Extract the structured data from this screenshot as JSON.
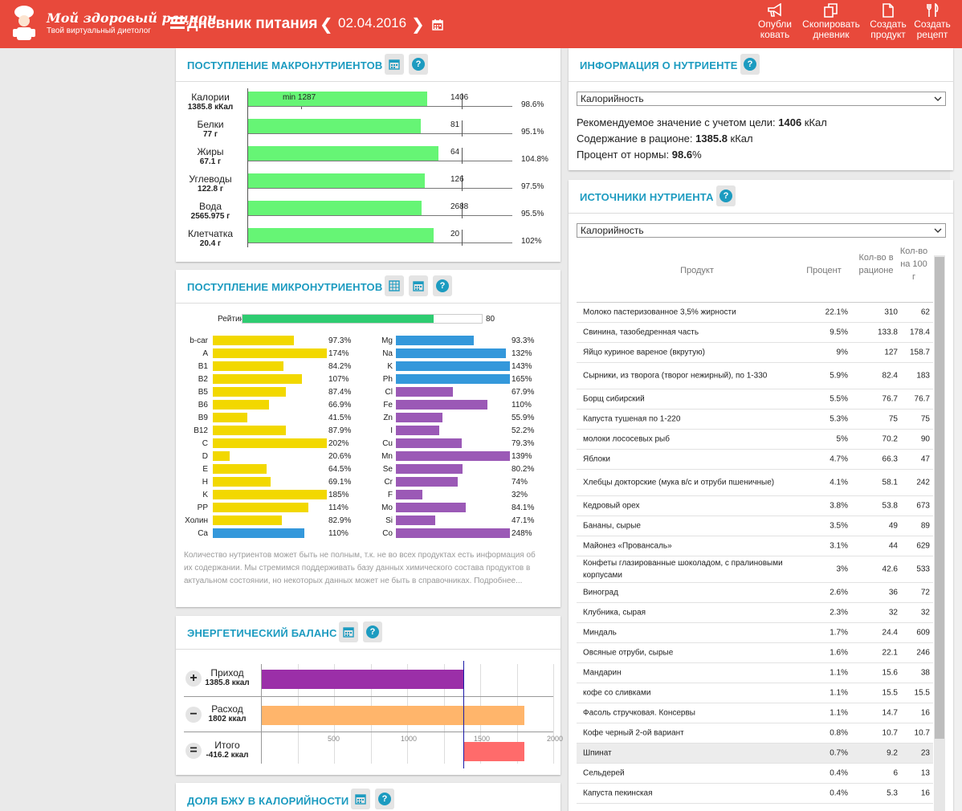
{
  "header": {
    "logo_title": "Мой здоровый рацион",
    "logo_subtitle": "Твой виртуальный диетолог",
    "page_title": "Дневник питания",
    "date": "02.04.2016",
    "actions": [
      {
        "line1": "Опубли",
        "line2": "ковать",
        "icon": "megaphone-icon"
      },
      {
        "line1": "Скопировать",
        "line2": "дневник",
        "icon": "copy-icon"
      },
      {
        "line1": "Создать",
        "line2": "продукт",
        "icon": "document-icon"
      },
      {
        "line1": "Создать",
        "line2": "рецепт",
        "icon": "utensils-icon"
      }
    ]
  },
  "macro": {
    "title": "ПОСТУПЛЕНИЕ МАКРОНУТРИЕНТОВ",
    "rows": [
      {
        "name": "Калории",
        "value": "1385.8 кКал",
        "norm": "1406",
        "min": "min 1287",
        "percent": "98.6%",
        "fill": 0.986
      },
      {
        "name": "Белки",
        "value": "77 г",
        "norm": "81",
        "percent": "95.1%",
        "fill": 0.951
      },
      {
        "name": "Жиры",
        "value": "67.1 г",
        "norm": "64",
        "percent": "104.8%",
        "fill": 1.048
      },
      {
        "name": "Углеводы",
        "value": "122.8 г",
        "norm": "126",
        "percent": "97.5%",
        "fill": 0.975
      },
      {
        "name": "Вода",
        "value": "2565.975 г",
        "norm": "2688",
        "percent": "95.5%",
        "fill": 0.955
      },
      {
        "name": "Клетчатка",
        "value": "20.4 г",
        "norm": "20",
        "percent": "102%",
        "fill": 1.02
      }
    ]
  },
  "micro": {
    "title": "ПОСТУПЛЕНИЕ МИКРОНУТРИЕНТОВ",
    "rating_label": "Рейтинг",
    "rating_value": "80",
    "left": [
      {
        "name": "b-car",
        "percent": "97.3%",
        "fill": 0.973,
        "color": "#f2d800"
      },
      {
        "name": "A",
        "percent": "174%",
        "fill": 1.74,
        "color": "#f2d800"
      },
      {
        "name": "B1",
        "percent": "84.2%",
        "fill": 0.842,
        "color": "#f2d800"
      },
      {
        "name": "B2",
        "percent": "107%",
        "fill": 1.07,
        "color": "#f2d800"
      },
      {
        "name": "B5",
        "percent": "87.4%",
        "fill": 0.874,
        "color": "#f2d800"
      },
      {
        "name": "B6",
        "percent": "66.9%",
        "fill": 0.669,
        "color": "#f2d800"
      },
      {
        "name": "B9",
        "percent": "41.5%",
        "fill": 0.415,
        "color": "#f2d800"
      },
      {
        "name": "B12",
        "percent": "87.9%",
        "fill": 0.879,
        "color": "#f2d800"
      },
      {
        "name": "C",
        "percent": "202%",
        "fill": 2.02,
        "color": "#f2d800"
      },
      {
        "name": "D",
        "percent": "20.6%",
        "fill": 0.206,
        "color": "#f2d800"
      },
      {
        "name": "E",
        "percent": "64.5%",
        "fill": 0.645,
        "color": "#f2d800"
      },
      {
        "name": "H",
        "percent": "69.1%",
        "fill": 0.691,
        "color": "#f2d800"
      },
      {
        "name": "K",
        "percent": "185%",
        "fill": 1.85,
        "color": "#f2d800"
      },
      {
        "name": "PP",
        "percent": "114%",
        "fill": 1.14,
        "color": "#f2d800"
      },
      {
        "name": "Холин",
        "percent": "82.9%",
        "fill": 0.829,
        "color": "#f2d800"
      },
      {
        "name": "Ca",
        "percent": "110%",
        "fill": 1.1,
        "color": "#3498db"
      }
    ],
    "right": [
      {
        "name": "Mg",
        "percent": "93.3%",
        "fill": 0.933,
        "color": "#3498db"
      },
      {
        "name": "Na",
        "percent": "132%",
        "fill": 1.32,
        "color": "#3498db"
      },
      {
        "name": "K",
        "percent": "143%",
        "fill": 1.43,
        "color": "#3498db"
      },
      {
        "name": "Ph",
        "percent": "165%",
        "fill": 1.65,
        "color": "#3498db"
      },
      {
        "name": "Cl",
        "percent": "67.9%",
        "fill": 0.679,
        "color": "#9b59b6"
      },
      {
        "name": "Fe",
        "percent": "110%",
        "fill": 1.1,
        "color": "#9b59b6"
      },
      {
        "name": "Zn",
        "percent": "55.9%",
        "fill": 0.559,
        "color": "#9b59b6"
      },
      {
        "name": "I",
        "percent": "52.2%",
        "fill": 0.522,
        "color": "#9b59b6"
      },
      {
        "name": "Cu",
        "percent": "79.3%",
        "fill": 0.793,
        "color": "#9b59b6"
      },
      {
        "name": "Mn",
        "percent": "139%",
        "fill": 1.39,
        "color": "#9b59b6"
      },
      {
        "name": "Se",
        "percent": "80.2%",
        "fill": 0.802,
        "color": "#9b59b6"
      },
      {
        "name": "Cr",
        "percent": "74%",
        "fill": 0.74,
        "color": "#9b59b6"
      },
      {
        "name": "F",
        "percent": "32%",
        "fill": 0.32,
        "color": "#9b59b6"
      },
      {
        "name": "Mo",
        "percent": "84.1%",
        "fill": 0.841,
        "color": "#9b59b6"
      },
      {
        "name": "Si",
        "percent": "47.1%",
        "fill": 0.471,
        "color": "#9b59b6"
      },
      {
        "name": "Co",
        "percent": "248%",
        "fill": 2.48,
        "color": "#9b59b6"
      }
    ],
    "note": "Количество нутриентов может быть не полным, т.к. не во всех продуктах есть информация об их содержании. Мы стремимся поддерживать базу данных химического состава продуктов в актуальном состоянии, но некоторых данных может не быть в справочниках. Подробнее..."
  },
  "energy": {
    "title": "ЭНЕРГЕТИЧЕСКИЙ БАЛАНС",
    "rows": [
      {
        "sign": "+",
        "name": "Приход",
        "value": "1385.8 ккал",
        "amount": 1385.8,
        "color": "#9b2fa8"
      },
      {
        "sign": "−",
        "name": "Расход",
        "value": "1802 ккал",
        "amount": 1802,
        "color": "#ffb56b"
      },
      {
        "sign": "=",
        "name": "Итого",
        "value": "-416.2 ккал",
        "amount": -416.2,
        "color": "#ff6b6b"
      }
    ],
    "ticks": [
      "500",
      "1000",
      "1500",
      "2000"
    ]
  },
  "bju": {
    "title": "ДОЛЯ БЖУ В КАЛОРИЙНОСТИ"
  },
  "info": {
    "title": "ИНФОРМАЦИЯ О НУТРИЕНТЕ",
    "selected": "Калорийность",
    "rec_label": "Рекомендуемое значение с учетом цели:",
    "rec_value": "1406",
    "rec_unit": "кКал",
    "content_label": "Содержание в рационе:",
    "content_value": "1385.8",
    "content_unit": "кКал",
    "pct_label": "Процент от нормы:",
    "pct_value": "98.6",
    "pct_unit": "%"
  },
  "sources": {
    "title": "ИСТОЧНИКИ НУТРИЕНТА",
    "selected": "Калорийность",
    "col_product": "Продукт",
    "col_percent": "Процент",
    "col_amount": "Кол-во в рационе",
    "col_per100": "Кол-во на 100 г",
    "rows": [
      {
        "name": "Молоко пастеризованное 3,5% жирности",
        "percent": "22.1%",
        "amount": "310",
        "per100": "62"
      },
      {
        "name": "Свинина, тазобедренная часть",
        "percent": "9.5%",
        "amount": "133.8",
        "per100": "178.4"
      },
      {
        "name": "Яйцо куриное вареное (вкрутую)",
        "percent": "9%",
        "amount": "127",
        "per100": "158.7"
      },
      {
        "name": "Сырники, из творога (творог нежирный), по 1-330",
        "percent": "5.9%",
        "amount": "82.4",
        "per100": "183"
      },
      {
        "name": "Борщ сибирский",
        "percent": "5.5%",
        "amount": "76.7",
        "per100": "76.7"
      },
      {
        "name": "Капуста тушеная по 1-220",
        "percent": "5.3%",
        "amount": "75",
        "per100": "75"
      },
      {
        "name": "молоки лососевых рыб",
        "percent": "5%",
        "amount": "70.2",
        "per100": "90"
      },
      {
        "name": "Яблоки",
        "percent": "4.7%",
        "amount": "66.3",
        "per100": "47"
      },
      {
        "name": "Хлебцы докторские (мука в/с и отруби пшеничные)",
        "percent": "4.1%",
        "amount": "58.1",
        "per100": "242"
      },
      {
        "name": "Кедровый орех",
        "percent": "3.8%",
        "amount": "53.8",
        "per100": "673"
      },
      {
        "name": "Бананы, сырые",
        "percent": "3.5%",
        "amount": "49",
        "per100": "89"
      },
      {
        "name": "Майонез «Провансаль»",
        "percent": "3.1%",
        "amount": "44",
        "per100": "629"
      },
      {
        "name": "Конфеты глазированные шоколадом, с пралиновыми корпусами",
        "percent": "3%",
        "amount": "42.6",
        "per100": "533"
      },
      {
        "name": "Виноград",
        "percent": "2.6%",
        "amount": "36",
        "per100": "72"
      },
      {
        "name": "Клубника, сырая",
        "percent": "2.3%",
        "amount": "32",
        "per100": "32"
      },
      {
        "name": "Миндаль",
        "percent": "1.7%",
        "amount": "24.4",
        "per100": "609"
      },
      {
        "name": "Овсяные отруби, сырые",
        "percent": "1.6%",
        "amount": "22.1",
        "per100": "246"
      },
      {
        "name": "Мандарин",
        "percent": "1.1%",
        "amount": "15.6",
        "per100": "38"
      },
      {
        "name": "кофе со сливками",
        "percent": "1.1%",
        "amount": "15.5",
        "per100": "15.5"
      },
      {
        "name": "Фасоль стручковая. Консервы",
        "percent": "1.1%",
        "amount": "14.7",
        "per100": "16"
      },
      {
        "name": "Кофе черный 2-ой вариант",
        "percent": "0.8%",
        "amount": "10.7",
        "per100": "10.7"
      },
      {
        "name": "Шпинат",
        "percent": "0.7%",
        "amount": "9.2",
        "per100": "23"
      },
      {
        "name": "Сельдерей",
        "percent": "0.4%",
        "amount": "6",
        "per100": "13"
      },
      {
        "name": "Капуста пекинская",
        "percent": "0.4%",
        "amount": "5.3",
        "per100": "16"
      }
    ]
  },
  "colors": {
    "header": "#e8493b",
    "accent": "#1c9bc0",
    "macro_bar": "#66f575",
    "rating": "#2ecc71"
  }
}
